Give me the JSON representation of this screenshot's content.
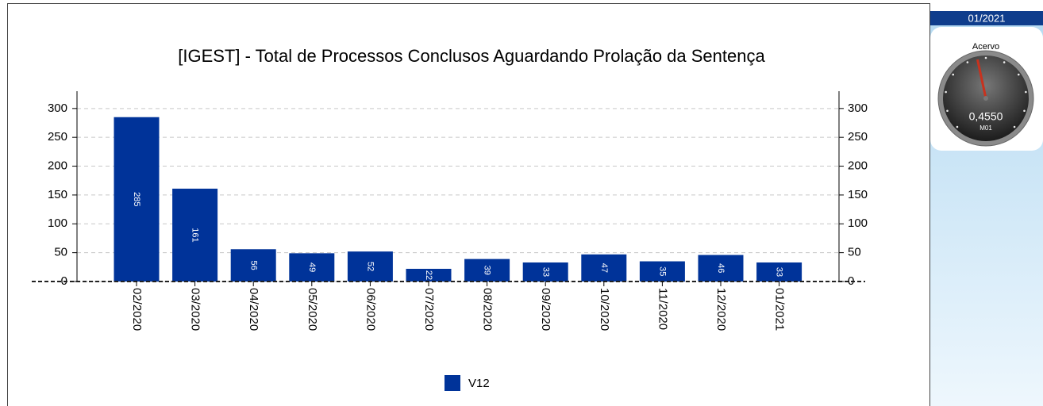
{
  "panel": {
    "title": "01/2021"
  },
  "chart_data": [
    {
      "type": "bar",
      "title": "[IGEST]  - Total de Processos Conclusos Aguardando Prolação da Sentença",
      "categories": [
        "02/2020",
        "03/2020",
        "04/2020",
        "05/2020",
        "06/2020",
        "07/2020",
        "08/2020",
        "09/2020",
        "10/2020",
        "11/2020",
        "12/2020",
        "01/2021"
      ],
      "series": [
        {
          "name": "V12",
          "color": "#003399",
          "values": [
            285,
            161,
            56,
            49,
            52,
            22,
            39,
            33,
            47,
            35,
            46,
            33
          ]
        }
      ],
      "ylim": [
        0,
        330
      ],
      "yticks": [
        0,
        50,
        100,
        150,
        200,
        250,
        300
      ],
      "y2lim": [
        0,
        330
      ],
      "y2ticks": [
        0,
        50,
        100,
        150,
        200,
        250,
        300
      ],
      "grid": true,
      "legend": "bottom"
    },
    {
      "type": "gauge",
      "title": "Acervo",
      "value": 0.455,
      "value_label": "0,4550",
      "subtitle": "M01",
      "range": [
        0,
        1
      ]
    }
  ]
}
